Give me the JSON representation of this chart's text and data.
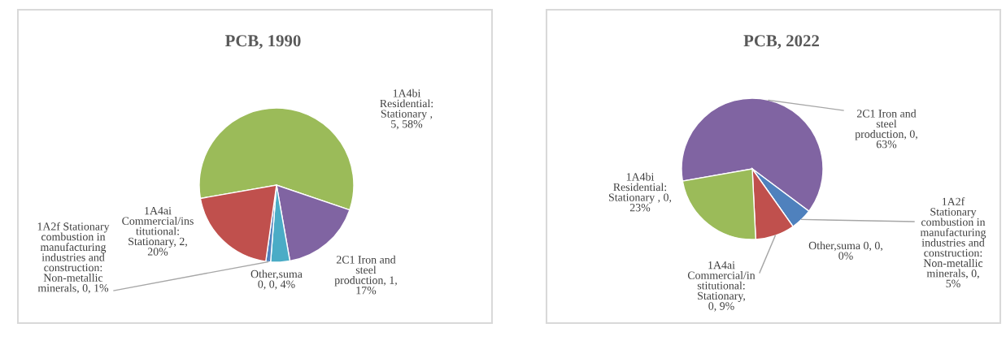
{
  "chart_data": [
    {
      "type": "pie",
      "title": "PCB, 1990",
      "categories": [
        "1A4bi Residential: Stationary ",
        "2C1 Iron and steel production",
        "Other,suma 0",
        "1A2f Stationary combustion in manufacturing industries and construction: Non-metallic minerals",
        "1A4ai Commercial/institutional: Stationary"
      ],
      "values": [
        58,
        17,
        4,
        1,
        20
      ],
      "colors": [
        "#9bbb59",
        "#8064a2",
        "#4bacc6",
        "#4f81bd",
        "#c0504d"
      ],
      "value_labels": [
        ", 5, 58%",
        ", 1, 17%",
        ", 0, 4%",
        ", 0, 1%",
        ", 2, 20%"
      ]
    },
    {
      "type": "pie",
      "title": "PCB, 2022",
      "categories": [
        "2C1 Iron and steel production",
        "1A2f Stationary combustion in manufacturing industries and construction: Non-metallic minerals",
        "Other,suma 0",
        "1A4ai Commercial/institutional: Stationary",
        "1A4bi Residential: Stationary "
      ],
      "values": [
        63,
        5,
        0,
        9,
        23
      ],
      "colors": [
        "#8064a2",
        "#4f81bd",
        "#4bacc6",
        "#c0504d",
        "#9bbb59"
      ],
      "value_labels": [
        ", 0, 63%",
        ", 0, 5%",
        ", 0, 0%",
        ", 0, 9%",
        ", 0, 23%"
      ]
    }
  ]
}
